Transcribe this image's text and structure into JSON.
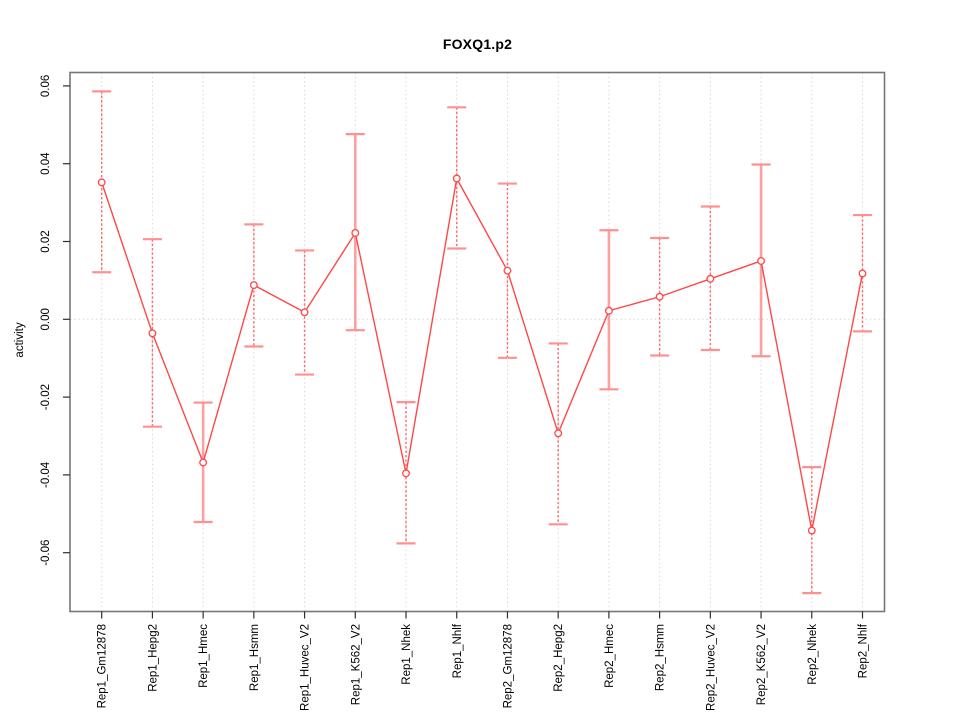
{
  "chart_data": {
    "type": "line",
    "title": "FOXQ1.p2",
    "xlabel": "",
    "ylabel": "activity",
    "categories": [
      "Rep1_Gm12878",
      "Rep1_Hepg2",
      "Rep1_Hmec",
      "Rep1_Hsmm",
      "Rep1_Huvec_V2",
      "Rep1_K562_V2",
      "Rep1_Nhek",
      "Rep1_Nhlf",
      "Rep2_Gm12878",
      "Rep2_Hepg2",
      "Rep2_Hmec",
      "Rep2_Hsmm",
      "Rep2_Huvec_V2",
      "Rep2_K562_V2",
      "Rep2_Nhek",
      "Rep2_Nhlf"
    ],
    "series": [
      {
        "name": "activity",
        "marker": "open-circle",
        "values": [
          0.0352,
          -0.0036,
          -0.0368,
          0.0088,
          0.0018,
          0.0222,
          -0.0396,
          0.0362,
          0.0125,
          -0.0293,
          0.0022,
          0.0058,
          0.0104,
          0.015,
          -0.0543,
          0.0118
        ],
        "error_high": [
          0.0586,
          0.0206,
          -0.0214,
          0.0244,
          0.0177,
          0.0476,
          -0.0213,
          0.0545,
          0.0349,
          -0.0062,
          0.0229,
          0.0209,
          0.029,
          0.0398,
          -0.038,
          0.0268
        ],
        "error_low": [
          0.0121,
          -0.0276,
          -0.0521,
          -0.007,
          -0.0142,
          -0.0028,
          -0.0576,
          0.0182,
          -0.0099,
          -0.0527,
          -0.018,
          -0.0093,
          -0.0079,
          -0.0095,
          -0.0704,
          -0.0031
        ],
        "whisker_styles": [
          "dashed",
          "dashed",
          "solid",
          "dashed",
          "dashed",
          "solid",
          "dashed",
          "dashed",
          "dashed",
          "dashed",
          "solid",
          "dashed",
          "dashed",
          "solid",
          "dashed",
          "dashed"
        ]
      }
    ],
    "y_ticks": [
      0.06,
      0.04,
      0.02,
      0.0,
      -0.02,
      -0.04,
      -0.06
    ],
    "y_tick_labels": [
      "0.06",
      "0.04",
      "0.02",
      "0.00",
      "-0.02",
      "-0.04",
      "-0.06"
    ],
    "ylim": [
      -0.0751,
      0.0635
    ],
    "grid": {
      "vertical_dotted_per_category": true,
      "horizontal_dotted_at_zero": true
    },
    "legend": {
      "shown": false
    }
  },
  "colors": {
    "line": "#ff4747",
    "marker_stroke": "#ff4747",
    "marker_fill": "#ffffff",
    "whisker_dashed": "#ff6b6b",
    "whisker_solid": "#ffa0a0",
    "cap": "#ff9090",
    "grid": "#d8d8d8",
    "frame": "#767676",
    "tick": "#2e2e2e",
    "text": "#000000",
    "background": "#ffffff"
  }
}
